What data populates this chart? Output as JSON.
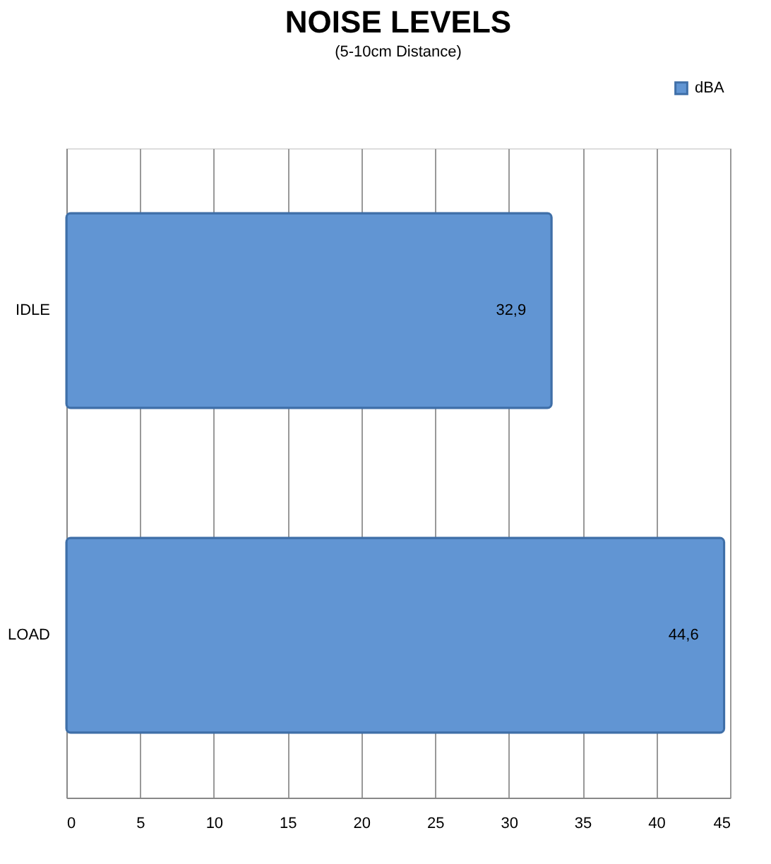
{
  "chart_data": {
    "type": "bar",
    "orientation": "horizontal",
    "title": "NOISE LEVELS",
    "subtitle": "(5-10cm Distance)",
    "categories": [
      "IDLE",
      "LOAD"
    ],
    "series": [
      {
        "name": "dBA",
        "color": "#6195d3",
        "values": [
          32.9,
          44.6
        ],
        "value_labels": [
          "32,9",
          "44,6"
        ]
      }
    ],
    "xlim": [
      0,
      45
    ],
    "xticks": [
      0,
      5,
      10,
      15,
      20,
      25,
      30,
      35,
      40,
      45
    ],
    "grid": "x",
    "legend": "top right"
  }
}
